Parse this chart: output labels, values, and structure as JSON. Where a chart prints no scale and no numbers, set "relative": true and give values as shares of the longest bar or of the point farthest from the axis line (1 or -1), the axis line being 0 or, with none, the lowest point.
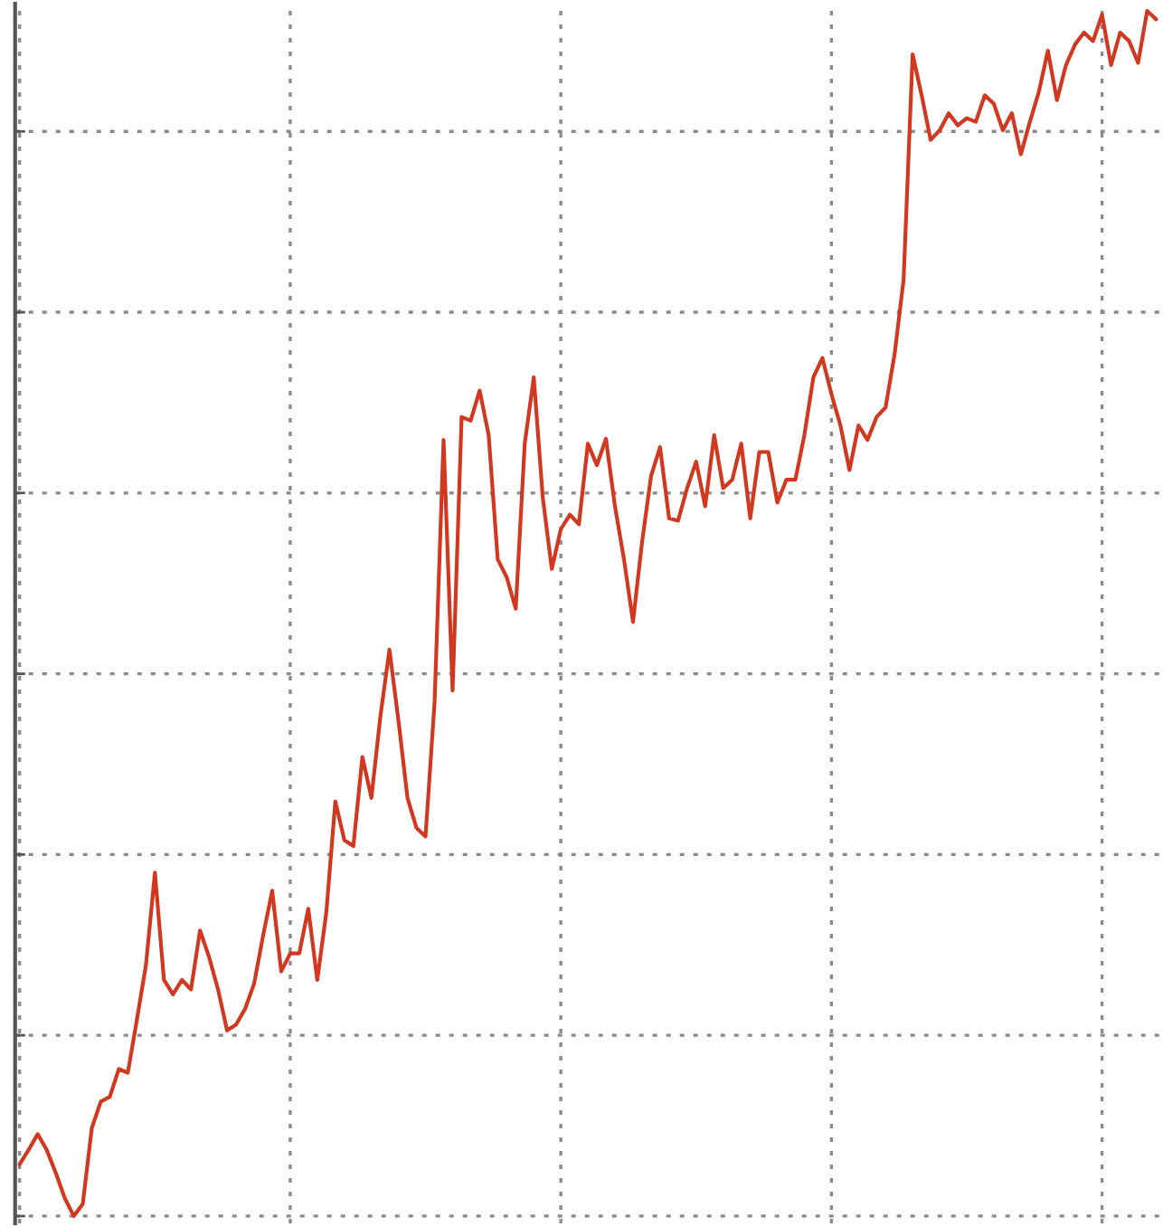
{
  "chart_data": {
    "type": "line",
    "relative": true,
    "grid": true,
    "line_style": "solid",
    "categories": [
      null,
      null,
      null,
      null,
      null,
      null,
      null,
      null,
      null,
      null,
      null,
      null,
      null,
      null,
      null,
      null,
      null,
      null,
      null,
      null,
      null,
      null,
      null,
      null,
      null,
      null,
      null,
      null,
      null,
      null,
      null,
      null,
      null,
      null,
      null,
      null,
      null,
      null,
      null,
      null,
      null,
      null,
      null,
      null,
      null,
      null,
      null,
      null,
      null,
      null,
      null,
      null,
      null,
      null,
      null,
      null,
      null,
      null,
      null,
      null,
      null,
      null,
      null,
      null,
      null,
      null,
      null,
      null,
      null,
      null,
      null,
      null,
      null,
      null,
      null,
      null,
      null,
      null,
      null,
      null,
      null,
      null,
      null,
      null,
      null,
      null,
      null,
      null,
      null,
      null,
      null,
      null,
      null,
      null,
      null,
      null,
      null,
      null,
      null,
      null,
      null,
      null,
      null,
      null,
      null,
      null,
      null,
      null,
      null,
      null,
      null,
      null,
      null,
      null,
      null,
      null,
      null,
      null,
      null,
      null,
      null,
      null,
      null,
      null,
      null,
      null,
      null
    ],
    "series": [
      {
        "color": "#d2371f",
        "values": [
          0.043,
          0.055,
          0.068,
          0.055,
          0.036,
          0.015,
          0,
          0.01,
          0.073,
          0.095,
          0.099,
          0.122,
          0.119,
          0.163,
          0.208,
          0.285,
          0.196,
          0.184,
          0.196,
          0.188,
          0.237,
          0.215,
          0.188,
          0.154,
          0.159,
          0.172,
          0.193,
          0.233,
          0.27,
          0.203,
          0.218,
          0.218,
          0.255,
          0.196,
          0.252,
          0.344,
          0.312,
          0.307,
          0.381,
          0.347,
          0.415,
          0.47,
          0.411,
          0.347,
          0.322,
          0.315,
          0.426,
          0.644,
          0.436,
          0.663,
          0.66,
          0.685,
          0.648,
          0.545,
          0.53,
          0.504,
          0.641,
          0.696,
          0.596,
          0.537,
          0.57,
          0.582,
          0.574,
          0.641,
          0.623,
          0.645,
          0.589,
          0.545,
          0.493,
          0.559,
          0.614,
          0.638,
          0.579,
          0.577,
          0.604,
          0.626,
          0.589,
          0.648,
          0.604,
          0.611,
          0.641,
          0.579,
          0.634,
          0.634,
          0.592,
          0.611,
          0.611,
          0.648,
          0.696,
          0.712,
          0.682,
          0.656,
          0.619,
          0.656,
          0.644,
          0.663,
          0.671,
          0.715,
          0.777,
          0.964,
          0.93,
          0.893,
          0.901,
          0.915,
          0.905,
          0.911,
          0.908,
          0.93,
          0.923,
          0.901,
          0.915,
          0.881,
          0.908,
          0.933,
          0.967,
          0.926,
          0.955,
          0.972,
          0.982,
          0.975,
          0.997,
          0.955,
          0.982,
          0.975,
          0.957,
          1,
          0.993
        ]
      }
    ]
  }
}
